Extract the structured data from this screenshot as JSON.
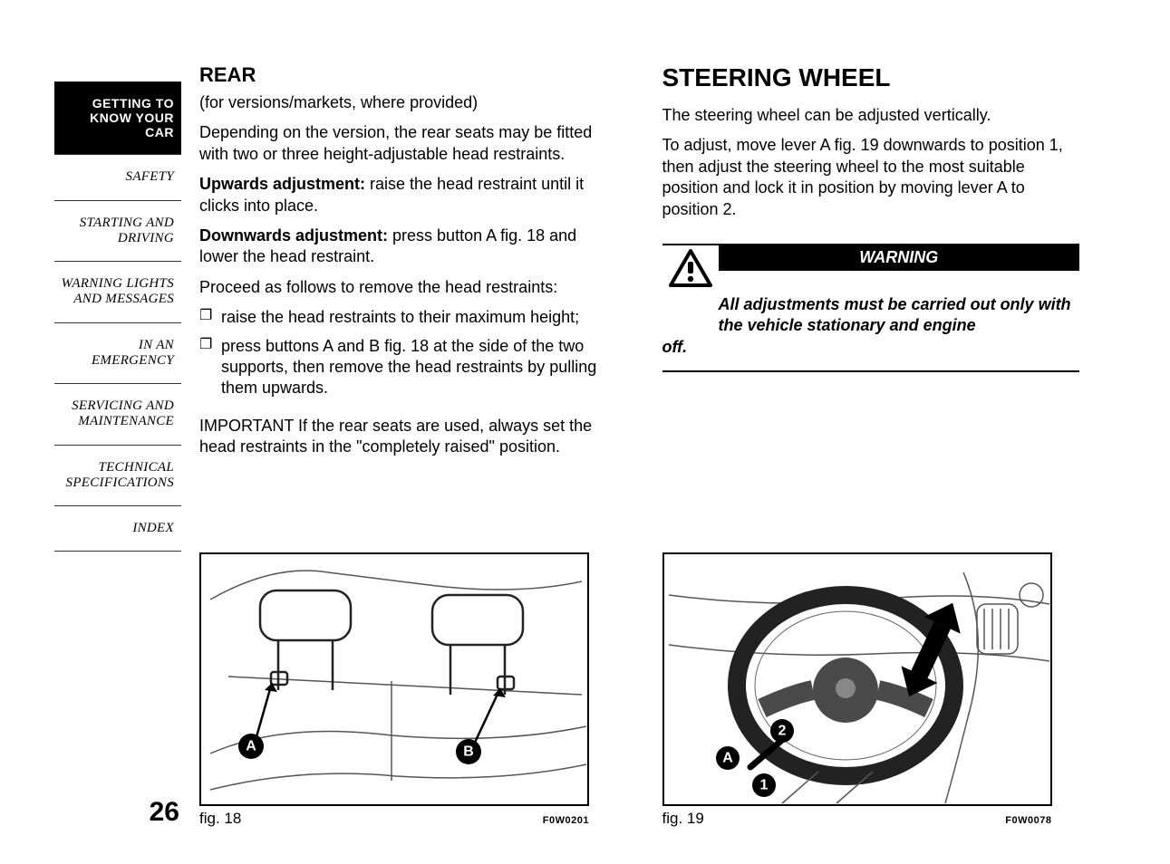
{
  "sidebar": {
    "tabs": [
      {
        "label": "GETTING TO\nKNOW YOUR CAR",
        "active": true
      },
      {
        "label": "SAFETY",
        "active": false
      },
      {
        "label": "STARTING AND\nDRIVING",
        "active": false
      },
      {
        "label": "WARNING LIGHTS\nAND MESSAGES",
        "active": false
      },
      {
        "label": "IN AN EMERGENCY",
        "active": false
      },
      {
        "label": "SERVICING AND\nMAINTENANCE",
        "active": false
      },
      {
        "label": "TECHNICAL\nSPECIFICATIONS",
        "active": false
      },
      {
        "label": "INDEX",
        "active": false
      }
    ],
    "page_number": "26"
  },
  "left": {
    "title": "REAR",
    "subtitle": "(for versions/markets, where provided)",
    "p1": "Depending on the version, the rear seats may be fitted with two or three height-adjustable head restraints.",
    "up_label": "Upwards adjustment:",
    "up_text": " raise the head restraint until it clicks into place.",
    "down_label": "Downwards adjustment:",
    "down_text": " press button A fig. 18 and lower the head restraint.",
    "p2": "Proceed as follows to remove the head restraints:",
    "bullets": [
      "raise the head restraints to their maximum height;",
      "press buttons A and B fig. 18 at the side of the two supports, then remove the head restraints by pulling them upwards."
    ],
    "important": "IMPORTANT If the rear seats are used, always set the head restraints in the \"completely raised\" position.",
    "fig": {
      "caption": "fig. 18",
      "code": "F0W0201",
      "labels": {
        "A": "A",
        "B": "B"
      }
    }
  },
  "right": {
    "title": "STEERING WHEEL",
    "p1": "The steering wheel can be adjusted vertically.",
    "p2": "To adjust, move lever A fig. 19 downwards to position 1, then adjust the steering wheel to the most suitable position and lock it in position by moving lever A to position 2.",
    "warning": {
      "title": "WARNING",
      "text_line1": "All adjustments must be carried out only with the vehicle stationary and engine",
      "text_line2": "off."
    },
    "fig": {
      "caption": "fig. 19",
      "code": "F0W0078",
      "labels": {
        "A": "A",
        "one": "1",
        "two": "2"
      }
    }
  },
  "style": {
    "page_bg": "#ffffff",
    "text_color": "#000000",
    "sidebar_active_bg": "#000000",
    "sidebar_active_fg": "#ffffff",
    "warning_bar_bg": "#000000",
    "warning_bar_fg": "#ffffff",
    "body_fontsize": 18,
    "title_fontsize": 28,
    "section_fontsize": 22
  }
}
